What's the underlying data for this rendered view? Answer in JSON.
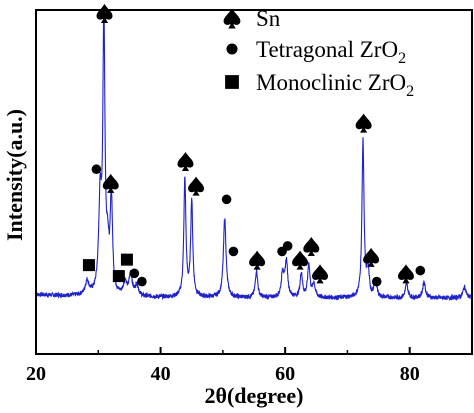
{
  "chart_data": {
    "type": "line",
    "title": "",
    "xlabel": "2θ(degree)",
    "ylabel": "Intensity(a.u.)",
    "xlim": [
      20,
      90
    ],
    "ylim": [
      0,
      100
    ],
    "y_ticks_shown": false,
    "x_ticks": [
      20,
      40,
      60,
      80
    ],
    "x_tick_labels": [
      "20",
      "40",
      "60",
      "80"
    ],
    "legend_position": "top-right",
    "line_color": "#1f22c8",
    "legend": [
      {
        "marker": "spade",
        "label_main": "Sn",
        "label_sub": ""
      },
      {
        "marker": "circle",
        "label_main": "Tetragonal ZrO",
        "label_sub": "2"
      },
      {
        "marker": "square",
        "label_main": "Monoclinic ZrO",
        "label_sub": "2"
      }
    ],
    "peaks": [
      {
        "x": 28.2,
        "y": 5,
        "w": 0.35
      },
      {
        "x": 30.3,
        "y": 33,
        "w": 0.28
      },
      {
        "x": 30.9,
        "y": 98,
        "w": 0.2
      },
      {
        "x": 31.5,
        "y": 14,
        "w": 0.25
      },
      {
        "x": 32.1,
        "y": 35,
        "w": 0.22
      },
      {
        "x": 34.3,
        "y": 5,
        "w": 0.3
      },
      {
        "x": 35.2,
        "y": 8,
        "w": 0.3
      },
      {
        "x": 36.2,
        "y": 4,
        "w": 0.3
      },
      {
        "x": 43.9,
        "y": 43,
        "w": 0.2
      },
      {
        "x": 45.0,
        "y": 35,
        "w": 0.2
      },
      {
        "x": 50.3,
        "y": 29,
        "w": 0.25
      },
      {
        "x": 55.4,
        "y": 10,
        "w": 0.22
      },
      {
        "x": 59.6,
        "y": 9,
        "w": 0.25
      },
      {
        "x": 60.2,
        "y": 13,
        "w": 0.25
      },
      {
        "x": 62.6,
        "y": 9,
        "w": 0.22
      },
      {
        "x": 63.8,
        "y": 12,
        "w": 0.22
      },
      {
        "x": 64.6,
        "y": 5,
        "w": 0.25
      },
      {
        "x": 72.5,
        "y": 57,
        "w": 0.2
      },
      {
        "x": 73.3,
        "y": 10,
        "w": 0.22
      },
      {
        "x": 74.5,
        "y": 6,
        "w": 0.25
      },
      {
        "x": 79.5,
        "y": 5,
        "w": 0.25
      },
      {
        "x": 82.3,
        "y": 6,
        "w": 0.25
      },
      {
        "x": 88.8,
        "y": 4,
        "w": 0.3
      }
    ],
    "annotations": [
      {
        "marker": "spade",
        "x": 31.0,
        "y": 104
      },
      {
        "marker": "circle",
        "x": 29.7,
        "y": 47
      },
      {
        "marker": "spade",
        "x": 32.0,
        "y": 42
      },
      {
        "marker": "square",
        "x": 28.5,
        "y": 12
      },
      {
        "marker": "square",
        "x": 33.3,
        "y": 8
      },
      {
        "marker": "square",
        "x": 34.6,
        "y": 14
      },
      {
        "marker": "circle",
        "x": 35.8,
        "y": 9
      },
      {
        "marker": "circle",
        "x": 37.0,
        "y": 6
      },
      {
        "marker": "spade",
        "x": 44.0,
        "y": 50
      },
      {
        "marker": "spade",
        "x": 45.7,
        "y": 41
      },
      {
        "marker": "circle",
        "x": 50.6,
        "y": 36
      },
      {
        "marker": "circle",
        "x": 51.7,
        "y": 17
      },
      {
        "marker": "spade",
        "x": 55.5,
        "y": 14
      },
      {
        "marker": "circle",
        "x": 59.5,
        "y": 17
      },
      {
        "marker": "circle",
        "x": 60.4,
        "y": 19
      },
      {
        "marker": "spade",
        "x": 62.4,
        "y": 14
      },
      {
        "marker": "spade",
        "x": 64.2,
        "y": 19
      },
      {
        "marker": "spade",
        "x": 65.6,
        "y": 9
      },
      {
        "marker": "spade",
        "x": 72.6,
        "y": 64
      },
      {
        "marker": "spade",
        "x": 73.8,
        "y": 15
      },
      {
        "marker": "circle",
        "x": 74.7,
        "y": 6
      },
      {
        "marker": "spade",
        "x": 79.4,
        "y": 9
      },
      {
        "marker": "circle",
        "x": 81.7,
        "y": 10
      }
    ]
  }
}
